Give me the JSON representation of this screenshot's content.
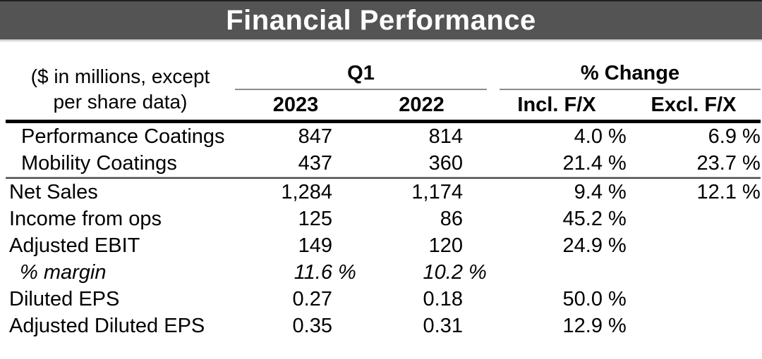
{
  "banner": {
    "title": "Financial Performance"
  },
  "header": {
    "stub_line1": "($ in millions, except",
    "stub_line2": "per share data)",
    "q1": "Q1",
    "pct_change": "% Change",
    "y2023": "2023",
    "y2022": "2022",
    "incl_fx": "Incl. F/X",
    "excl_fx": "Excl. F/X"
  },
  "table": {
    "rows": [
      {
        "label": "Performance Coatings",
        "cells": [
          {
            "v": "847",
            "s": ""
          },
          {
            "v": "814",
            "s": ""
          },
          {
            "v": "4.0",
            "s": "%"
          },
          {
            "v": "6.9",
            "s": "%"
          }
        ]
      },
      {
        "label": "Mobility Coatings",
        "cells": [
          {
            "v": "437",
            "s": ""
          },
          {
            "v": "360",
            "s": ""
          },
          {
            "v": "21.4",
            "s": "%"
          },
          {
            "v": "23.7",
            "s": "%"
          }
        ]
      },
      {
        "label": "Net Sales",
        "cells": [
          {
            "v": "1,284",
            "s": ""
          },
          {
            "v": "1,174",
            "s": ""
          },
          {
            "v": "9.4",
            "s": "%"
          },
          {
            "v": "12.1",
            "s": "%"
          }
        ]
      },
      {
        "label": "Income from ops",
        "cells": [
          {
            "v": "125",
            "s": ""
          },
          {
            "v": "86",
            "s": ""
          },
          {
            "v": "45.2",
            "s": "%"
          },
          {
            "v": "",
            "s": ""
          }
        ]
      },
      {
        "label": "Adjusted EBIT",
        "cells": [
          {
            "v": "149",
            "s": ""
          },
          {
            "v": "120",
            "s": ""
          },
          {
            "v": "24.9",
            "s": "%"
          },
          {
            "v": "",
            "s": ""
          }
        ]
      },
      {
        "label": "% margin",
        "cells": [
          {
            "v": "11.6",
            "s": "%"
          },
          {
            "v": "10.2",
            "s": "%"
          },
          {
            "v": "",
            "s": ""
          },
          {
            "v": "",
            "s": ""
          }
        ]
      },
      {
        "label": "Diluted EPS",
        "cells": [
          {
            "v": "0.27",
            "s": ""
          },
          {
            "v": "0.18",
            "s": ""
          },
          {
            "v": "50.0",
            "s": "%"
          },
          {
            "v": "",
            "s": ""
          }
        ]
      },
      {
        "label": "Adjusted Diluted EPS",
        "cells": [
          {
            "v": "0.35",
            "s": ""
          },
          {
            "v": "0.31",
            "s": ""
          },
          {
            "v": "12.9",
            "s": "%"
          },
          {
            "v": "",
            "s": ""
          }
        ]
      }
    ]
  },
  "colors": {
    "banner_background": "#545454",
    "banner_text": "#ffffff",
    "banner_strip": "#d9d9d9",
    "group_underline": "#8c8c8c",
    "header_rule": "#000000",
    "divider_light": "#b3b3b3",
    "divider_dark": "#4a4a4a",
    "body_text": "#000000"
  }
}
